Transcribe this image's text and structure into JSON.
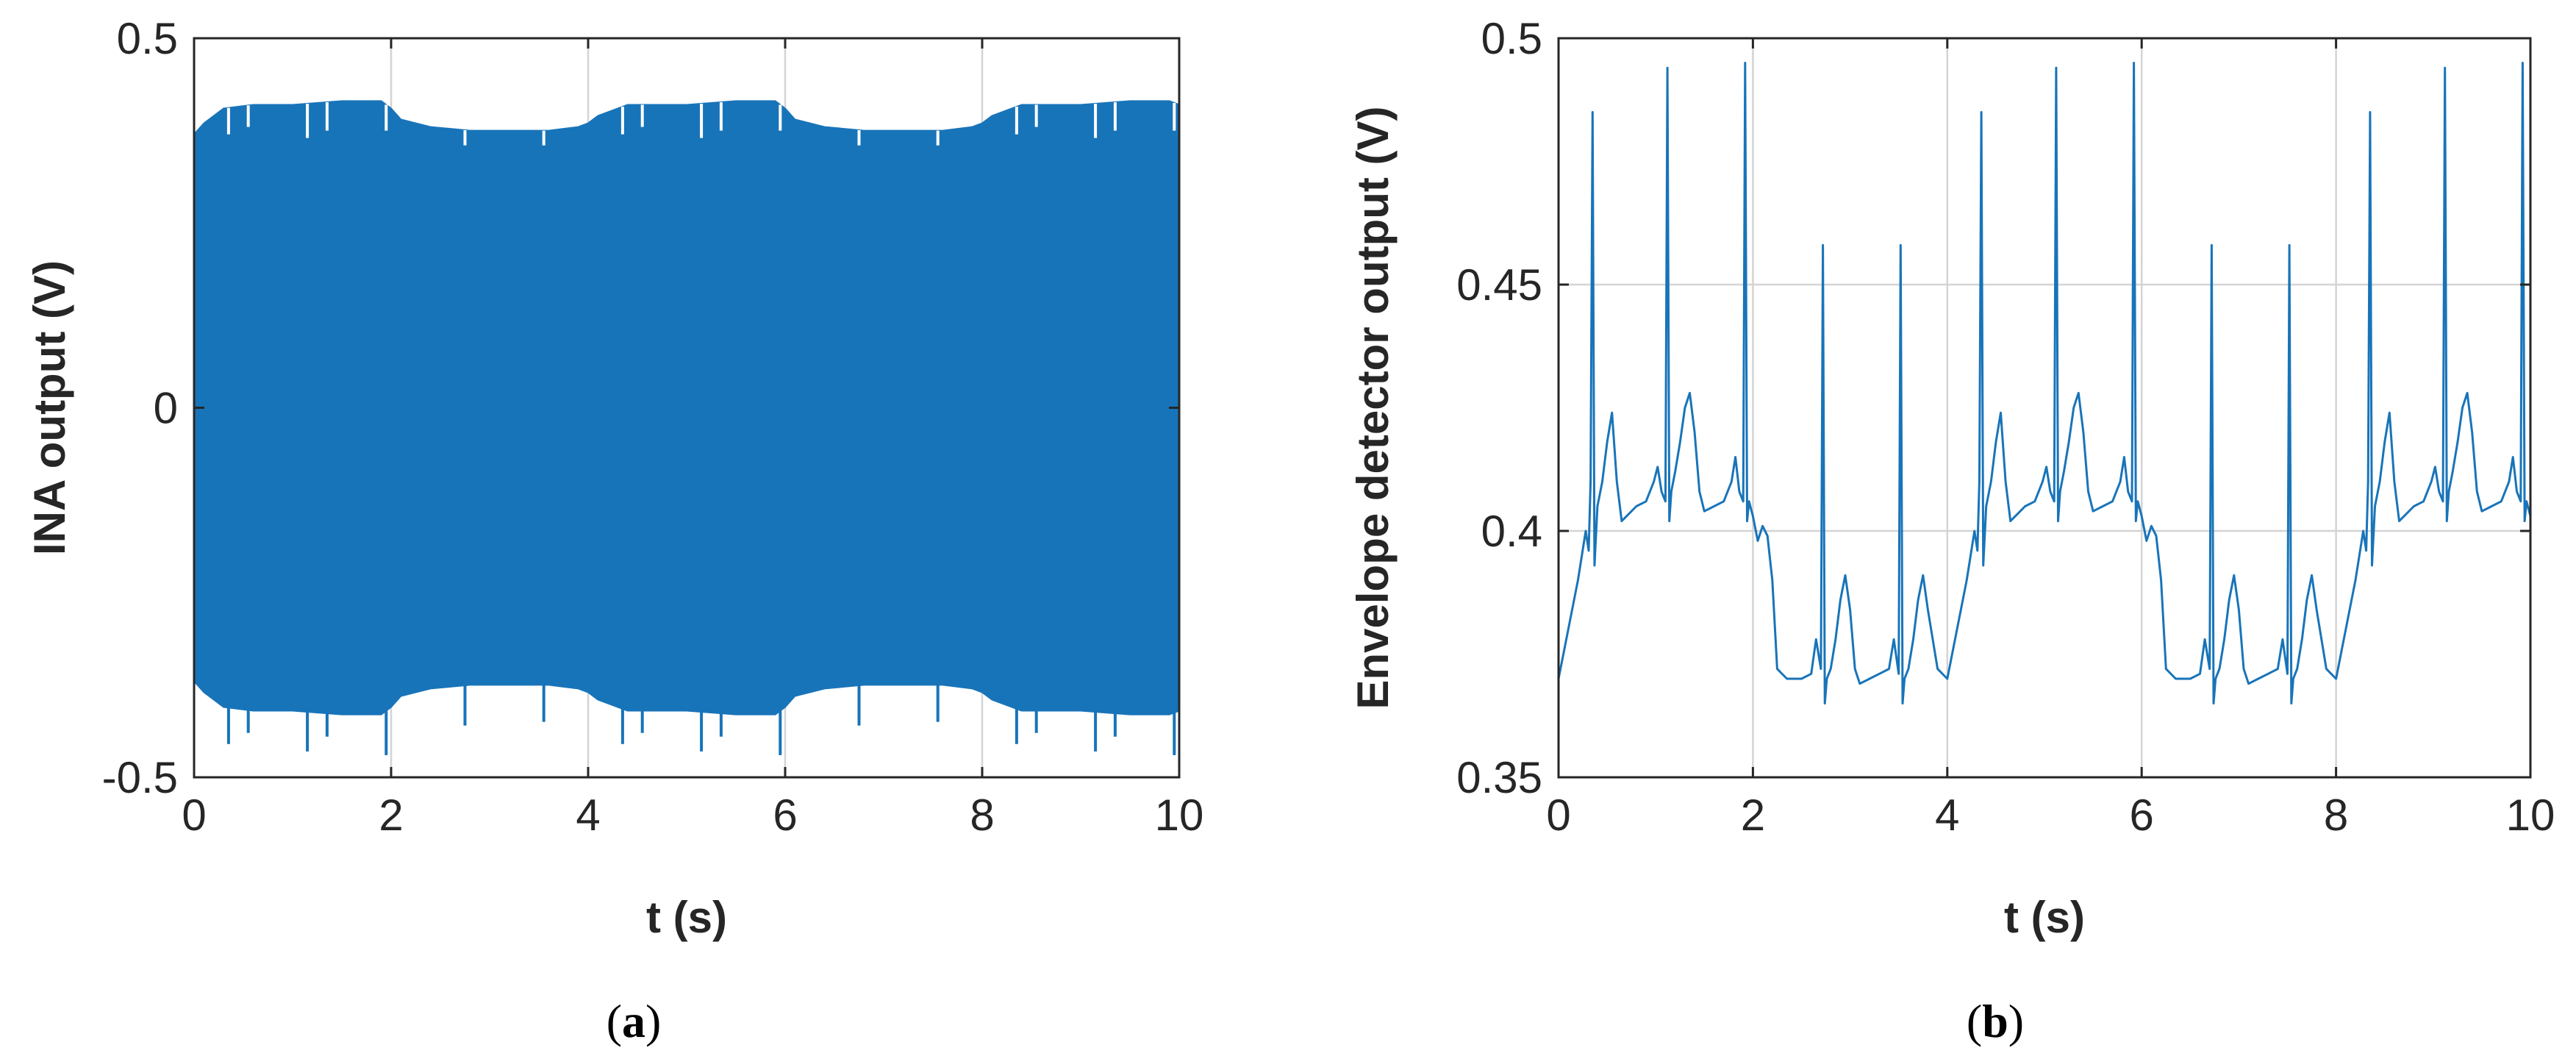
{
  "colors": {
    "series": "#1874b9",
    "grid": "#d4d4d4",
    "axis": "#262626"
  },
  "chart_data": [
    {
      "panel": "(a)",
      "type": "line",
      "xlabel": "t (s)",
      "ylabel": "INA output (V)",
      "xlim": [
        0,
        10
      ],
      "ylim": [
        -0.5,
        0.5
      ],
      "x_ticks": [
        0,
        2,
        4,
        6,
        8,
        10
      ],
      "x_tick_labels": [
        "0",
        "2",
        "4",
        "6",
        "8",
        "10"
      ],
      "y_ticks": [
        -0.5,
        0,
        0.5
      ],
      "y_tick_labels": [
        "-0.5",
        "0",
        "0.5"
      ],
      "grid": true,
      "series": [
        {
          "style": "dense oscillation filled between upper and lower envelope",
          "upper_envelope": {
            "x": [
              0,
              0.1,
              0.3,
              0.6,
              1.0,
              1.5,
              1.9,
              2.0,
              2.1,
              2.4,
              2.8,
              3.2,
              3.6,
              3.9,
              4.0,
              4.1,
              4.4,
              5.0,
              5.5,
              5.9,
              6.0,
              6.1,
              6.4,
              6.8,
              7.2,
              7.6,
              7.9,
              8.0,
              8.1,
              8.4,
              9.0,
              9.5,
              9.9,
              10.0
            ],
            "y": [
              0.37,
              0.385,
              0.405,
              0.41,
              0.41,
              0.415,
              0.415,
              0.405,
              0.39,
              0.38,
              0.375,
              0.375,
              0.375,
              0.38,
              0.385,
              0.395,
              0.41,
              0.41,
              0.415,
              0.415,
              0.405,
              0.39,
              0.38,
              0.375,
              0.375,
              0.375,
              0.38,
              0.385,
              0.395,
              0.41,
              0.41,
              0.415,
              0.415,
              0.41
            ]
          },
          "lower_envelope": {
            "x": [
              0,
              0.1,
              0.3,
              0.6,
              1.0,
              1.5,
              1.9,
              2.0,
              2.1,
              2.4,
              2.8,
              3.2,
              3.6,
              3.9,
              4.0,
              4.1,
              4.4,
              5.0,
              5.5,
              5.9,
              6.0,
              6.1,
              6.4,
              6.8,
              7.2,
              7.6,
              7.9,
              8.0,
              8.1,
              8.4,
              9.0,
              9.5,
              9.9,
              10.0
            ],
            "y": [
              -0.37,
              -0.385,
              -0.405,
              -0.41,
              -0.41,
              -0.415,
              -0.415,
              -0.405,
              -0.39,
              -0.38,
              -0.375,
              -0.375,
              -0.375,
              -0.38,
              -0.385,
              -0.395,
              -0.41,
              -0.41,
              -0.415,
              -0.415,
              -0.405,
              -0.39,
              -0.38,
              -0.375,
              -0.375,
              -0.375,
              -0.38,
              -0.385,
              -0.395,
              -0.41,
              -0.41,
              -0.415,
              -0.415,
              -0.41
            ]
          },
          "upper_notches_x": [
            0.35,
            0.55,
            1.15,
            1.35,
            1.95,
            2.75,
            3.55,
            4.35,
            4.55,
            5.15,
            5.35,
            5.95,
            6.75,
            7.55,
            8.35,
            8.55,
            9.15,
            9.35,
            9.95
          ],
          "upper_notches_y": [
            0.37,
            0.38,
            0.365,
            0.375,
            0.375,
            0.355,
            0.355,
            0.37,
            0.38,
            0.365,
            0.375,
            0.375,
            0.355,
            0.355,
            0.37,
            0.38,
            0.365,
            0.375,
            0.375
          ],
          "lower_notches_x": [
            0.35,
            0.55,
            1.15,
            1.35,
            1.95,
            2.75,
            3.55,
            4.35,
            4.55,
            5.15,
            5.35,
            5.95,
            6.75,
            7.55,
            8.35,
            8.55,
            9.15,
            9.35,
            9.95
          ],
          "lower_notches_y": [
            -0.455,
            -0.44,
            -0.465,
            -0.445,
            -0.47,
            -0.43,
            -0.425,
            -0.455,
            -0.44,
            -0.465,
            -0.445,
            -0.47,
            -0.43,
            -0.425,
            -0.455,
            -0.44,
            -0.465,
            -0.445,
            -0.47
          ]
        }
      ]
    },
    {
      "panel": "(b)",
      "type": "line",
      "xlabel": "t (s)",
      "ylabel": "Envelope detector output (V)",
      "xlim": [
        0,
        10
      ],
      "ylim": [
        0.35,
        0.5
      ],
      "x_ticks": [
        0,
        2,
        4,
        6,
        8,
        10
      ],
      "x_tick_labels": [
        "0",
        "2",
        "4",
        "6",
        "8",
        "10"
      ],
      "y_ticks": [
        0.35,
        0.4,
        0.45,
        0.5
      ],
      "y_tick_labels": [
        "0.35",
        "0.4",
        "0.45",
        "0.5"
      ],
      "grid": true,
      "series": [
        {
          "x": [
            0,
            0.1,
            0.2,
            0.28,
            0.31,
            0.33,
            0.35,
            0.37,
            0.4,
            0.45,
            0.5,
            0.55,
            0.6,
            0.65,
            0.7,
            0.8,
            0.9,
            0.98,
            1.02,
            1.06,
            1.1,
            1.12,
            1.14,
            1.16,
            1.2,
            1.25,
            1.3,
            1.35,
            1.4,
            1.45,
            1.5,
            1.6,
            1.7,
            1.78,
            1.82,
            1.86,
            1.9,
            1.92,
            1.94,
            1.96,
            2.0,
            2.05,
            2.1,
            2.15,
            2.2,
            2.25,
            2.35,
            2.5,
            2.6,
            2.65,
            2.7,
            2.72,
            2.74,
            2.76,
            2.8,
            2.85,
            2.9,
            2.95,
            3.0,
            3.05,
            3.1,
            3.2,
            3.3,
            3.4,
            3.45,
            3.5,
            3.52,
            3.54,
            3.56,
            3.6,
            3.65,
            3.7,
            3.75,
            3.8,
            3.9,
            4.0,
            4.1,
            4.2,
            4.28,
            4.31,
            4.33,
            4.35,
            4.37,
            4.4,
            4.45,
            4.5,
            4.55,
            4.6,
            4.65,
            4.7,
            4.8,
            4.9,
            4.98,
            5.02,
            5.06,
            5.1,
            5.12,
            5.14,
            5.16,
            5.2,
            5.25,
            5.3,
            5.35,
            5.4,
            5.45,
            5.5,
            5.6,
            5.7,
            5.78,
            5.82,
            5.86,
            5.9,
            5.92,
            5.94,
            5.96,
            6.0,
            6.05,
            6.1,
            6.15,
            6.2,
            6.25,
            6.35,
            6.5,
            6.6,
            6.65,
            6.7,
            6.72,
            6.74,
            6.76,
            6.8,
            6.85,
            6.9,
            6.95,
            7.0,
            7.05,
            7.1,
            7.2,
            7.3,
            7.4,
            7.45,
            7.5,
            7.52,
            7.54,
            7.56,
            7.6,
            7.65,
            7.7,
            7.75,
            7.8,
            7.9,
            8.0,
            8.1,
            8.2,
            8.28,
            8.31,
            8.33,
            8.35,
            8.37,
            8.4,
            8.45,
            8.5,
            8.55,
            8.6,
            8.65,
            8.7,
            8.8,
            8.9,
            8.98,
            9.02,
            9.06,
            9.1,
            9.12,
            9.14,
            9.16,
            9.2,
            9.25,
            9.3,
            9.35,
            9.4,
            9.45,
            9.5,
            9.6,
            9.7,
            9.78,
            9.82,
            9.86,
            9.9,
            9.92,
            9.94,
            9.96,
            10.0
          ],
          "y": [
            0.37,
            0.38,
            0.39,
            0.4,
            0.396,
            0.41,
            0.485,
            0.393,
            0.405,
            0.41,
            0.418,
            0.424,
            0.41,
            0.402,
            0.403,
            0.405,
            0.406,
            0.41,
            0.413,
            0.408,
            0.406,
            0.494,
            0.402,
            0.408,
            0.412,
            0.418,
            0.425,
            0.428,
            0.42,
            0.408,
            0.404,
            0.405,
            0.406,
            0.41,
            0.415,
            0.408,
            0.406,
            0.495,
            0.402,
            0.406,
            0.403,
            0.398,
            0.401,
            0.399,
            0.39,
            0.372,
            0.37,
            0.37,
            0.371,
            0.378,
            0.372,
            0.458,
            0.365,
            0.37,
            0.372,
            0.378,
            0.386,
            0.391,
            0.384,
            0.372,
            0.369,
            0.37,
            0.371,
            0.372,
            0.378,
            0.371,
            0.458,
            0.365,
            0.37,
            0.372,
            0.378,
            0.386,
            0.391,
            0.384,
            0.372,
            0.37,
            0.38,
            0.39,
            0.4,
            0.396,
            0.41,
            0.485,
            0.393,
            0.405,
            0.41,
            0.418,
            0.424,
            0.41,
            0.402,
            0.403,
            0.405,
            0.406,
            0.41,
            0.413,
            0.408,
            0.406,
            0.494,
            0.402,
            0.408,
            0.412,
            0.418,
            0.425,
            0.428,
            0.42,
            0.408,
            0.404,
            0.405,
            0.406,
            0.41,
            0.415,
            0.408,
            0.406,
            0.495,
            0.402,
            0.406,
            0.403,
            0.398,
            0.401,
            0.399,
            0.39,
            0.372,
            0.37,
            0.37,
            0.371,
            0.378,
            0.372,
            0.458,
            0.365,
            0.37,
            0.372,
            0.378,
            0.386,
            0.391,
            0.384,
            0.372,
            0.369,
            0.37,
            0.371,
            0.372,
            0.378,
            0.371,
            0.458,
            0.365,
            0.37,
            0.372,
            0.378,
            0.386,
            0.391,
            0.384,
            0.372,
            0.37,
            0.38,
            0.39,
            0.4,
            0.396,
            0.41,
            0.485,
            0.393,
            0.405,
            0.41,
            0.418,
            0.424,
            0.41,
            0.402,
            0.403,
            0.405,
            0.406,
            0.41,
            0.413,
            0.408,
            0.406,
            0.494,
            0.402,
            0.408,
            0.412,
            0.418,
            0.425,
            0.428,
            0.42,
            0.408,
            0.404,
            0.405,
            0.406,
            0.41,
            0.415,
            0.408,
            0.406,
            0.495,
            0.402,
            0.406,
            0.403
          ]
        }
      ]
    }
  ],
  "panel_labels": [
    {
      "open": "(",
      "letter": "a",
      "close": ")"
    },
    {
      "open": "(",
      "letter": "b",
      "close": ")"
    }
  ]
}
